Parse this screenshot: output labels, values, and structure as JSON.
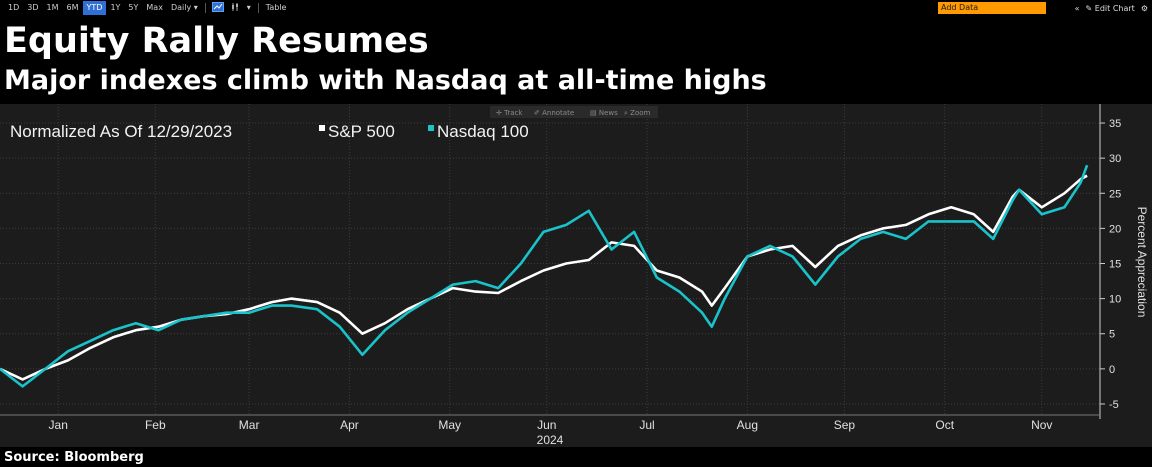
{
  "toolbar": {
    "ranges": [
      "1D",
      "3D",
      "1M",
      "6M",
      "YTD",
      "1Y",
      "5Y",
      "Max"
    ],
    "active_range": "YTD",
    "frequency": "Daily ▾",
    "table_label": "Table",
    "add_data_placeholder": "Add Data",
    "edit_chart_label": "Edit Chart",
    "prev_icon": "double-chevron-left-icon",
    "line_icon": "line-chart-icon",
    "candles_icon": "candlestick-icon",
    "pencil_icon": "pencil-icon",
    "gear_icon": "gear-icon"
  },
  "header": {
    "title": "Equity Rally Resumes",
    "subtitle": "Major indexes climb with Nasdaq at all-time highs"
  },
  "chart_tools": [
    "✛ Track",
    "✐ Annotate",
    "▤ News",
    "⌕ Zoom"
  ],
  "source": "Source: Bloomberg",
  "chart_data": {
    "type": "line",
    "title": "Normalized As Of 12/29/2023",
    "ylabel": "Percent Appreciation",
    "xlabel": "2024",
    "ylim": [
      -6,
      36
    ],
    "yticks": [
      -5,
      0,
      5,
      10,
      15,
      20,
      25,
      30,
      35
    ],
    "grid": true,
    "legend_position": "top-left",
    "month_labels": [
      {
        "label": "Jan",
        "date": "2024-01-16"
      },
      {
        "label": "Feb",
        "date": "2024-02-15"
      },
      {
        "label": "Mar",
        "date": "2024-03-15"
      },
      {
        "label": "Apr",
        "date": "2024-04-15"
      },
      {
        "label": "May",
        "date": "2024-05-16"
      },
      {
        "label": "Jun",
        "date": "2024-06-15"
      },
      {
        "label": "Jul",
        "date": "2024-07-16"
      },
      {
        "label": "Aug",
        "date": "2024-08-16"
      },
      {
        "label": "Sep",
        "date": "2024-09-15"
      },
      {
        "label": "Oct",
        "date": "2024-10-16"
      },
      {
        "label": "Nov",
        "date": "2024-11-15"
      }
    ],
    "x": [
      "2023-12-29",
      "2024-01-05",
      "2024-01-12",
      "2024-01-19",
      "2024-01-26",
      "2024-02-02",
      "2024-02-09",
      "2024-02-16",
      "2024-02-23",
      "2024-03-01",
      "2024-03-08",
      "2024-03-15",
      "2024-03-22",
      "2024-03-28",
      "2024-04-05",
      "2024-04-12",
      "2024-04-19",
      "2024-04-26",
      "2024-05-03",
      "2024-05-10",
      "2024-05-17",
      "2024-05-24",
      "2024-05-31",
      "2024-06-07",
      "2024-06-14",
      "2024-06-21",
      "2024-06-28",
      "2024-07-05",
      "2024-07-12",
      "2024-07-19",
      "2024-07-26",
      "2024-08-02",
      "2024-08-05",
      "2024-08-09",
      "2024-08-16",
      "2024-08-23",
      "2024-08-30",
      "2024-09-06",
      "2024-09-13",
      "2024-09-20",
      "2024-09-27",
      "2024-10-04",
      "2024-10-11",
      "2024-10-18",
      "2024-10-25",
      "2024-10-31",
      "2024-11-06",
      "2024-11-08",
      "2024-11-15",
      "2024-11-22",
      "2024-11-27",
      "2024-11-29"
    ],
    "series": [
      {
        "name": "S&P 500",
        "color": "#ffffff",
        "values": [
          0.0,
          -1.5,
          0.0,
          1.2,
          3.0,
          4.5,
          5.5,
          6.0,
          7.0,
          7.5,
          7.8,
          8.5,
          9.5,
          10.0,
          9.5,
          8.0,
          5.0,
          6.5,
          8.5,
          10.0,
          11.5,
          11.0,
          10.8,
          12.5,
          14.0,
          15.0,
          15.5,
          18.0,
          17.5,
          14.0,
          13.0,
          11.0,
          9.0,
          11.5,
          16.0,
          17.0,
          17.5,
          14.5,
          17.5,
          19.0,
          20.0,
          20.5,
          22.0,
          23.0,
          22.0,
          19.5,
          24.5,
          25.5,
          23.0,
          25.0,
          27.0,
          27.5
        ]
      },
      {
        "name": "Nasdaq 100",
        "color": "#19c3c9",
        "values": [
          0.0,
          -2.5,
          0.0,
          2.5,
          4.0,
          5.5,
          6.5,
          5.5,
          7.0,
          7.5,
          8.0,
          8.0,
          9.0,
          9.0,
          8.5,
          6.0,
          2.0,
          5.5,
          8.0,
          10.0,
          12.0,
          12.5,
          11.5,
          15.0,
          19.5,
          20.5,
          22.5,
          17.0,
          19.5,
          13.0,
          11.0,
          8.0,
          6.0,
          10.0,
          16.0,
          17.5,
          16.0,
          12.0,
          16.0,
          18.5,
          19.5,
          18.5,
          21.0,
          21.0,
          21.0,
          18.5,
          24.0,
          25.5,
          22.0,
          23.0,
          26.5,
          29.0
        ]
      }
    ]
  }
}
